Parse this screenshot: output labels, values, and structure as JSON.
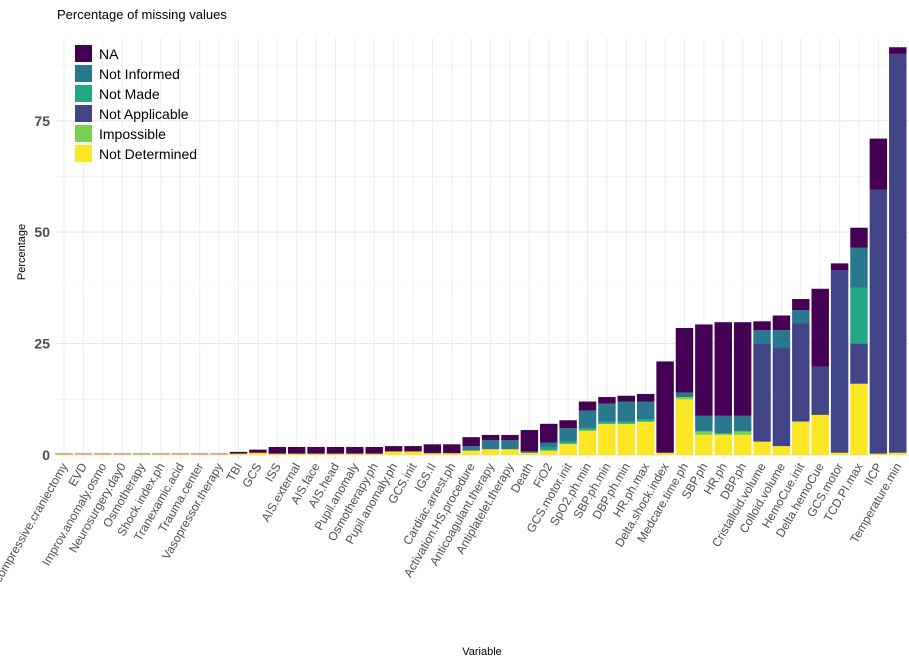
{
  "chart_data": {
    "type": "bar",
    "stacked": true,
    "title": "Percentage of missing values",
    "xlabel": "Variable",
    "ylabel": "Percentage",
    "ylim": [
      0,
      92
    ],
    "yticks": [
      0,
      25,
      50,
      75
    ],
    "grid": true,
    "legend_position": "top-left",
    "categories": [
      "Decompressive.craniectomy",
      "EVD",
      "Improv.anomaly.osmo",
      "Neurosurgery.day0",
      "Osmotherapy",
      "Shock.index.ph",
      "Tranexamic.acid",
      "Trauma.center",
      "Vasopressor.therapy",
      "TBI",
      "GCS",
      "ISS",
      "AIS.external",
      "AIS.face",
      "AIS.head",
      "Pupil.anomaly",
      "Osmotherapy.ph",
      "Pupil.anomaly.ph",
      "GCS.init",
      "IGS.II",
      "Cardiac.arrest.ph",
      "Activation.HS.procedure",
      "Anticoagulant.therapy",
      "Antiplatelet.therapy",
      "Death",
      "FiO2",
      "GCS.motor.init",
      "SpO2.ph.min",
      "SBP.ph.min",
      "DBP.ph.min",
      "HR.ph.max",
      "Delta.shock.index",
      "Medcare.time.ph",
      "SBP.ph",
      "HR.ph",
      "DBP.ph",
      "Cristalloid.volume",
      "Colloid.volume",
      "HemoCue.init",
      "Delta.hemoCue",
      "GCS.motor",
      "TCD.PI.max",
      "IICP",
      "Temperature.min"
    ],
    "series": [
      {
        "name": "Not Determined",
        "color": "#FDE725",
        "values": [
          0.2,
          0.2,
          0.2,
          0.2,
          0.2,
          0.2,
          0.2,
          0.2,
          0.2,
          0.3,
          0.5,
          0.3,
          0.3,
          0.3,
          0.3,
          0.3,
          0.3,
          0.8,
          0.8,
          0.4,
          0.4,
          1.0,
          1.3,
          1.3,
          0.5,
          1.0,
          2.5,
          5.5,
          7.0,
          7.0,
          7.5,
          0.5,
          12.5,
          4.5,
          4.5,
          4.5,
          3.0,
          2.0,
          7.5,
          9.0,
          0.5,
          16.0,
          0.3,
          0.5
        ]
      },
      {
        "name": "Impossible",
        "color": "#7AD151",
        "values": [
          0,
          0,
          0,
          0,
          0,
          0,
          0,
          0,
          0,
          0,
          0,
          0,
          0,
          0,
          0,
          0,
          0,
          0,
          0,
          0,
          0,
          0,
          0,
          0,
          0,
          0,
          0,
          0,
          0,
          0,
          0,
          0,
          0.5,
          0.8,
          0.3,
          0.8,
          0,
          0,
          0,
          0,
          0,
          0,
          0,
          0
        ]
      },
      {
        "name": "Not Applicable",
        "color": "#414487",
        "values": [
          0,
          0,
          0,
          0,
          0,
          0,
          0,
          0,
          0,
          0,
          0,
          0,
          0,
          0,
          0,
          0,
          0,
          0,
          0,
          0,
          0,
          0,
          0,
          0,
          0,
          0,
          0,
          0,
          0,
          0,
          0,
          0,
          0,
          0,
          0,
          0,
          22.0,
          22.0,
          22.0,
          10.8,
          41.0,
          9.0,
          59.2,
          89.5
        ]
      },
      {
        "name": "Not Made",
        "color": "#22A884",
        "values": [
          0,
          0,
          0,
          0,
          0,
          0,
          0,
          0,
          0,
          0,
          0,
          0,
          0,
          0,
          0,
          0,
          0,
          0,
          0,
          0,
          0,
          0,
          0,
          0,
          0,
          0.8,
          0.5,
          0.5,
          0.5,
          0.5,
          0.5,
          0,
          0,
          0,
          0,
          0,
          0,
          0,
          0,
          0,
          0,
          12.5,
          0,
          0
        ]
      },
      {
        "name": "Not Informed",
        "color": "#2A788E",
        "values": [
          0,
          0,
          0,
          0,
          0,
          0,
          0,
          0,
          0,
          0,
          0,
          0,
          0,
          0,
          0,
          0,
          0,
          0,
          0,
          0,
          0,
          1.0,
          2.0,
          2.0,
          0.3,
          1.0,
          3.0,
          4.0,
          4.0,
          4.5,
          4.0,
          0,
          1.0,
          3.5,
          4.0,
          3.5,
          3.0,
          4.0,
          3.0,
          0,
          0,
          9.0,
          0,
          0
        ]
      },
      {
        "name": "NA",
        "color": "#440154",
        "values": [
          0.1,
          0.1,
          0.1,
          0.1,
          0.1,
          0.1,
          0.1,
          0.1,
          0.1,
          0.4,
          0.7,
          1.5,
          1.5,
          1.5,
          1.5,
          1.5,
          1.5,
          1.2,
          1.2,
          2.0,
          2.0,
          2.0,
          1.2,
          1.2,
          4.8,
          4.2,
          1.8,
          2.0,
          1.5,
          1.3,
          1.7,
          20.5,
          14.5,
          20.5,
          21.0,
          21.0,
          2.0,
          3.3,
          2.5,
          17.5,
          1.5,
          4.5,
          11.5,
          1.5
        ]
      }
    ],
    "legend_order": [
      "NA",
      "Not Informed",
      "Not Made",
      "Not Applicable",
      "Impossible",
      "Not Determined"
    ]
  }
}
